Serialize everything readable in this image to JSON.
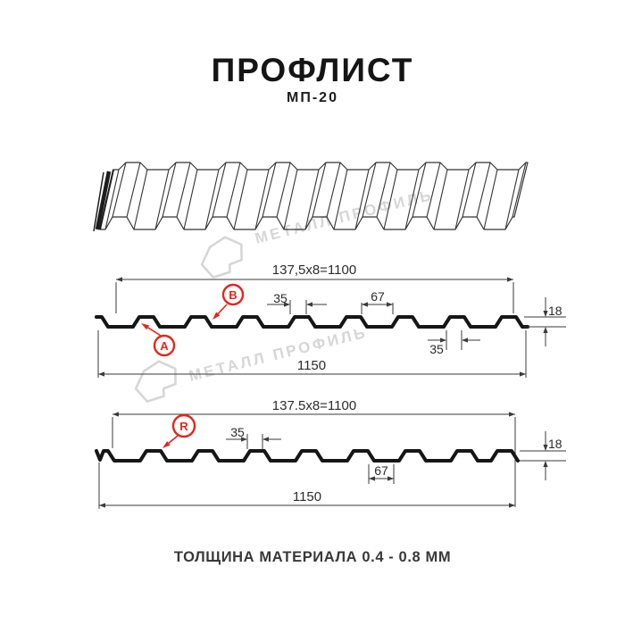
{
  "page": {
    "title": "ПРОФЛИСТ",
    "subtitle": "МП-20",
    "footer": "ТОЛЩИНА МАТЕРИАЛА 0.4 - 0.8 ММ"
  },
  "watermark": {
    "brand": "МЕТАЛЛ ПРОФИЛЬ"
  },
  "colors": {
    "accent_red": "#e2261c",
    "line_dark": "#161616",
    "watermark_gray": "#d6d6d6"
  },
  "sections": [
    {
      "name": "side-a-b",
      "module_width": "137,5x8=1100",
      "crest_width": "35",
      "crest_spacing": "67",
      "profile_height": "18",
      "crest_width_bottom": "35",
      "overall_width": "1150",
      "labels": [
        "A",
        "B"
      ]
    },
    {
      "name": "side-r",
      "module_width": "137.5x8=1100",
      "crest_width": "35",
      "crest_spacing": "67",
      "profile_height": "18",
      "overall_width": "1150",
      "labels": [
        "R"
      ]
    }
  ]
}
